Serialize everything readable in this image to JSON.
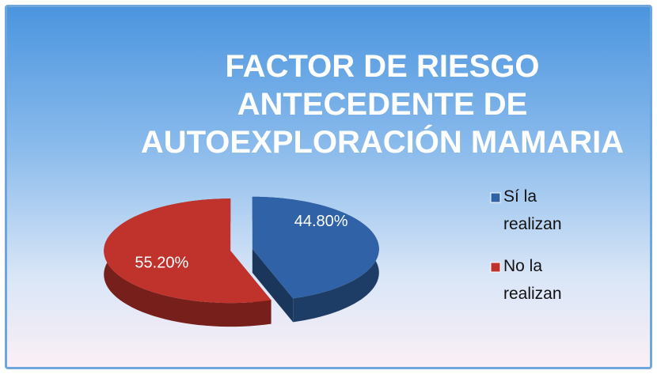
{
  "chart_data": {
    "type": "pie",
    "title": [
      "FACTOR DE RIESGO",
      "ANTECEDENTE DE",
      "AUTOEXPLORACIÓN MAMARIA"
    ],
    "categories": [
      "Sí la realizan",
      "No la realizan"
    ],
    "values": [
      44.8,
      55.2
    ],
    "value_labels": [
      "44.80%",
      "55.20%"
    ],
    "colors": [
      "#2f62a6",
      "#c0322c"
    ],
    "legend": "right"
  }
}
